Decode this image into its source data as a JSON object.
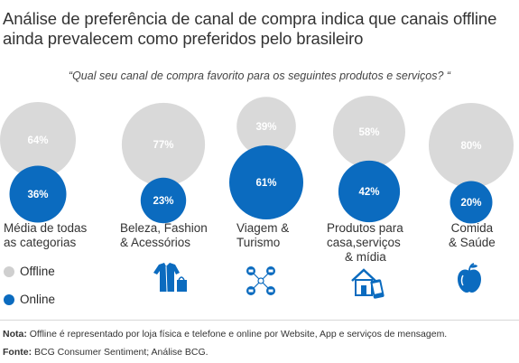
{
  "title": "Análise de preferência de canal de compra indica que canais offline ainda prevalecem como preferidos pelo brasileiro",
  "subtitle": "“Qual seu canal de compra favorito para os seguintes produtos e serviços? “",
  "chart_data": {
    "type": "bubble",
    "categories": [
      "Média de todas as categorias",
      "Beleza, Fashion & Acessórios",
      "Viagem & Turismo",
      "Produtos para casa,serviços & mídia",
      "Comida & Saúde"
    ],
    "series": [
      {
        "name": "Offline",
        "color": "#d9d9d9",
        "values": [
          64,
          77,
          39,
          58,
          80
        ],
        "labels": [
          "64%",
          "77%",
          "39%",
          "58%",
          "80%"
        ]
      },
      {
        "name": "Online",
        "color": "#0b6bbf",
        "values": [
          36,
          23,
          61,
          42,
          20
        ],
        "labels": [
          "36%",
          "23%",
          "61%",
          "42%",
          "20%"
        ]
      }
    ]
  },
  "category_lines": [
    [
      "Média de todas",
      "as categorias"
    ],
    [
      "Beleza, Fashion",
      "& Acessórios"
    ],
    [
      "Viagem &",
      "Turismo"
    ],
    [
      "Produtos para",
      "casa,serviços",
      "& mídia"
    ],
    [
      "Comida",
      "& Saúde"
    ]
  ],
  "legend": {
    "offline": {
      "label": "Offline",
      "color": "#cfcfcf"
    },
    "online": {
      "label": "Online",
      "color": "#0b6bbf"
    }
  },
  "icons": [
    "clothes-bag-icon",
    "travel-network-icon",
    "house-phone-icon",
    "apple-icon"
  ],
  "footnotes": {
    "note_label": "Nota:",
    "note_text": " Offline é representado por loja física e telefone e online por Website, App e serviços de mensagem.",
    "source_label": "Fonte:",
    "source_text": " BCG Consumer Sentiment; Análise BCG."
  }
}
